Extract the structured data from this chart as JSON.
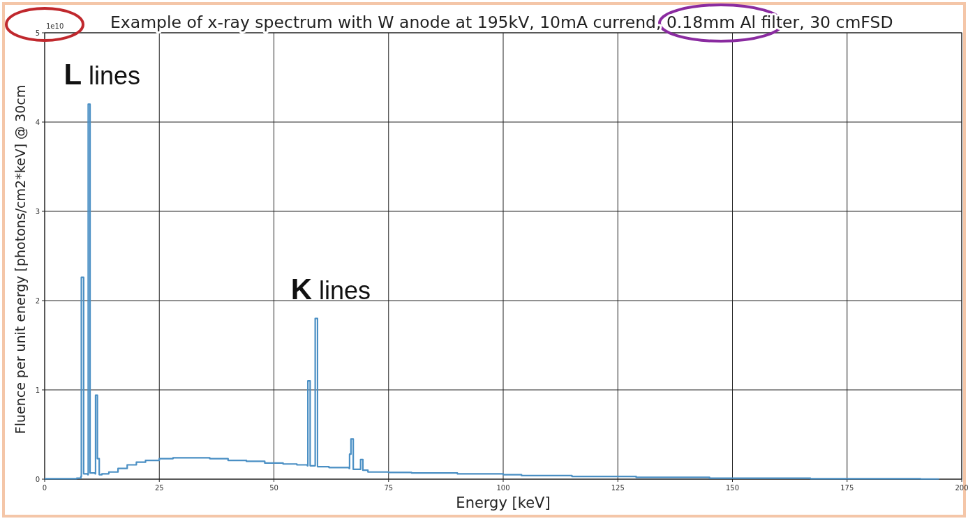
{
  "chart_data": {
    "type": "step",
    "title": "Example of x-ray spectrum with W anode at 195kV, 10mA currend, 0.18mm Al filter, 30 cmFSD",
    "xlabel": "Energy [keV]",
    "ylabel": "Fluence per unit energy [photons/cm2*keV] @ 30cm",
    "annotations": [
      {
        "text": "L lines",
        "x": 9.5,
        "y": 4.2
      },
      {
        "text": "K lines",
        "x": 59,
        "y": 1.8
      },
      "1e10"
    ],
    "x": [
      0,
      7,
      7.9,
      8.0,
      8.5,
      9.4,
      9.5,
      9.9,
      11.0,
      11.1,
      11.5,
      11.9,
      12.5,
      14,
      16,
      18,
      20,
      22,
      25,
      28,
      32,
      36,
      40,
      44,
      48,
      52,
      55,
      57.3,
      57.4,
      57.9,
      58.9,
      59.0,
      59.5,
      62,
      66.4,
      66.5,
      66.8,
      67.3,
      68.8,
      68.9,
      69.4,
      70.5,
      75,
      80,
      90,
      100,
      104,
      115,
      129,
      145,
      167,
      191,
      195
    ],
    "series": [
      {
        "color": "#4a8fc4",
        "values": [
          0.005,
          0.01,
          0.03,
          2.26,
          0.06,
          0.05,
          4.2,
          0.07,
          0.06,
          0.94,
          0.23,
          0.05,
          0.06,
          0.08,
          0.12,
          0.16,
          0.19,
          0.21,
          0.23,
          0.24,
          0.24,
          0.23,
          0.21,
          0.2,
          0.18,
          0.17,
          0.16,
          0.15,
          1.1,
          0.15,
          0.15,
          1.8,
          0.14,
          0.13,
          0.12,
          0.28,
          0.45,
          0.11,
          0.11,
          0.22,
          0.1,
          0.08,
          0.075,
          0.07,
          0.06,
          0.05,
          0.04,
          0.03,
          0.02,
          0.01,
          0.005,
          0.002,
          0
        ]
      }
    ],
    "xlim": [
      0,
      200
    ],
    "xticks": [
      0,
      25,
      50,
      75,
      100,
      125,
      150,
      175,
      200
    ],
    "ylim": [
      0,
      5
    ],
    "yticks": [
      0,
      1,
      2,
      3,
      4,
      5
    ],
    "grid": true
  }
}
